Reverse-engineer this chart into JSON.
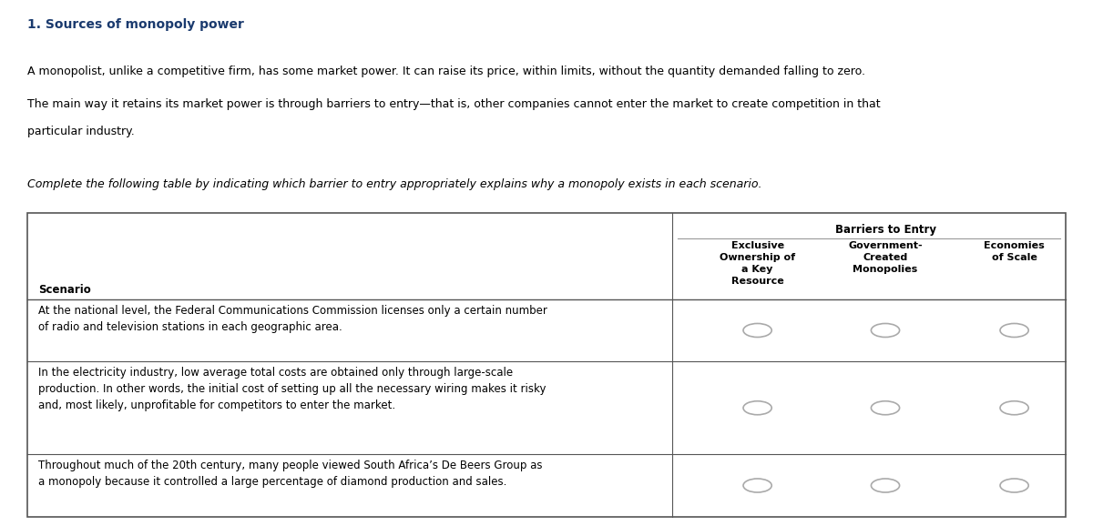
{
  "title": "1. Sources of monopoly power",
  "paragraph1": "A monopolist, unlike a competitive firm, has some market power. It can raise its price, within limits, without the quantity demanded falling to zero.",
  "paragraph2": "The main way it retains its market power is through barriers to entry—that is, other companies cannot enter the market to create competition in that particular industry.",
  "paragraph3": "particular industry.",
  "instruction": "Complete the following table by indicating which barrier to entry appropriately explains why a monopoly exists in each scenario.",
  "col_header_main": "Barriers to Entry",
  "col_scenario": "Scenario",
  "col1": "Exclusive\nOwnership of\na Key\nResource",
  "col2": "Government-\nCreated\nMonopolies",
  "col3": "Economies\nof Scale",
  "rows": [
    "At the national level, the Federal Communications Commission licenses only a certain number\nof radio and television stations in each geographic area.",
    "In the electricity industry, low average total costs are obtained only through large-scale\nproduction. In other words, the initial cost of setting up all the necessary wiring makes it risky\nand, most likely, unprofitable for competitors to enter the market.",
    "Throughout much of the 20th century, many people viewed South Africa’s De Beers Group as\na monopoly because it controlled a large percentage of diamond production and sales."
  ],
  "bg_color": "#ffffff",
  "title_color": "#1a3a6e",
  "text_color": "#000000",
  "table_border_color": "#555555",
  "radio_color": "#aaaaaa",
  "header_line_color": "#999999",
  "font_size_title": 10,
  "font_size_body": 9,
  "font_size_table": 8.5
}
